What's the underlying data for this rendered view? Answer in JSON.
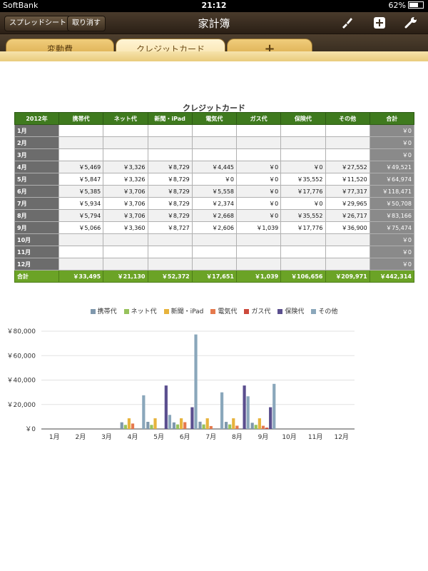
{
  "status_bar": {
    "carrier": "SoftBank",
    "time": "21:12",
    "battery": "62%"
  },
  "nav": {
    "title": "家計簿",
    "left_buttons": [
      "スプレッドシート",
      "取り消す"
    ],
    "icons": [
      "brush-icon",
      "add-icon",
      "wrench-icon"
    ]
  },
  "tabs": {
    "items": [
      "変動費",
      "クレジットカード",
      "+"
    ],
    "active": "クレジットカード"
  },
  "sheet": {
    "title": "クレジットカード",
    "headers": [
      "2012年",
      "携帯代",
      "ネット代",
      "新聞・iPad",
      "電気代",
      "ガス代",
      "保険代",
      "その他",
      "合計"
    ],
    "rows": [
      [
        "1月",
        "",
        "",
        "",
        "",
        "",
        "",
        "",
        "￥0"
      ],
      [
        "2月",
        "",
        "",
        "",
        "",
        "",
        "",
        "",
        "￥0"
      ],
      [
        "3月",
        "",
        "",
        "",
        "",
        "",
        "",
        "",
        "￥0"
      ],
      [
        "4月",
        "￥5,469",
        "￥3,326",
        "￥8,729",
        "￥4,445",
        "￥0",
        "￥0",
        "￥27,552",
        "￥49,521"
      ],
      [
        "5月",
        "￥5,847",
        "￥3,326",
        "￥8,729",
        "￥0",
        "￥0",
        "￥35,552",
        "￥11,520",
        "￥64,974"
      ],
      [
        "6月",
        "￥5,385",
        "￥3,706",
        "￥8,729",
        "￥5,558",
        "￥0",
        "￥17,776",
        "￥77,317",
        "￥118,471"
      ],
      [
        "7月",
        "￥5,934",
        "￥3,706",
        "￥8,729",
        "￥2,374",
        "￥0",
        "￥0",
        "￥29,965",
        "￥50,708"
      ],
      [
        "8月",
        "￥5,794",
        "￥3,706",
        "￥8,729",
        "￥2,668",
        "￥0",
        "￥35,552",
        "￥26,717",
        "￥83,166"
      ],
      [
        "9月",
        "￥5,066",
        "￥3,360",
        "￥8,727",
        "￥2,606",
        "￥1,039",
        "￥17,776",
        "￥36,900",
        "￥75,474"
      ],
      [
        "10月",
        "",
        "",
        "",
        "",
        "",
        "",
        "",
        "￥0"
      ],
      [
        "11月",
        "",
        "",
        "",
        "",
        "",
        "",
        "",
        "￥0"
      ],
      [
        "12月",
        "",
        "",
        "",
        "",
        "",
        "",
        "",
        "￥0"
      ]
    ],
    "totals": [
      "合計",
      "￥33,495",
      "￥21,130",
      "￥52,372",
      "￥17,651",
      "￥1,039",
      "￥106,656",
      "￥209,971",
      "￥442,314"
    ]
  },
  "colors": {
    "header_green": "#3f7a1e",
    "total_green": "#6ba326",
    "row_head_gray": "#6c6c6c",
    "tab_gold": "#e3b95e"
  },
  "chart_data": {
    "type": "bar",
    "categories": [
      "1月",
      "2月",
      "3月",
      "4月",
      "5月",
      "6月",
      "7月",
      "8月",
      "9月",
      "10月",
      "11月",
      "12月"
    ],
    "series": [
      {
        "name": "携帯代",
        "color": "#7f98ad",
        "values": [
          0,
          0,
          0,
          5469,
          5847,
          5385,
          5934,
          5794,
          5066,
          0,
          0,
          0
        ]
      },
      {
        "name": "ネット代",
        "color": "#97c25c",
        "values": [
          0,
          0,
          0,
          3326,
          3326,
          3706,
          3706,
          3706,
          3360,
          0,
          0,
          0
        ]
      },
      {
        "name": "新聞・iPad",
        "color": "#e7b33c",
        "values": [
          0,
          0,
          0,
          8729,
          8729,
          8729,
          8729,
          8729,
          8727,
          0,
          0,
          0
        ]
      },
      {
        "name": "電気代",
        "color": "#e5794d",
        "values": [
          0,
          0,
          0,
          4445,
          0,
          5558,
          2374,
          2668,
          2606,
          0,
          0,
          0
        ]
      },
      {
        "name": "ガス代",
        "color": "#cc4a3c",
        "values": [
          0,
          0,
          0,
          0,
          0,
          0,
          0,
          0,
          1039,
          0,
          0,
          0
        ]
      },
      {
        "name": "保険代",
        "color": "#5a4e8e",
        "values": [
          0,
          0,
          0,
          0,
          35552,
          17776,
          0,
          35552,
          17776,
          0,
          0,
          0
        ]
      },
      {
        "name": "その他",
        "color": "#8aa7bb",
        "values": [
          0,
          0,
          0,
          27552,
          11520,
          77317,
          29965,
          26717,
          36900,
          0,
          0,
          0
        ]
      }
    ],
    "y_ticks": [
      "￥0",
      "￥20,000",
      "￥40,000",
      "￥60,000",
      "￥80,000"
    ],
    "ylim": [
      0,
      80000
    ],
    "grid": true,
    "legend": "top"
  }
}
